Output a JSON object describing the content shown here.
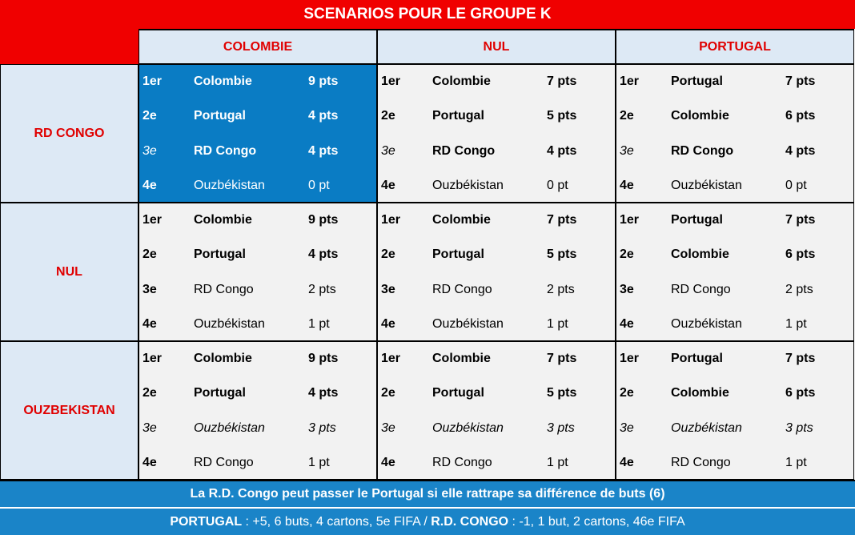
{
  "title": "SCENARIOS POUR LE GROUPE K",
  "columns": [
    "COLOMBIE",
    "NUL",
    "PORTUGAL"
  ],
  "rows": [
    {
      "label": "RD CONGO",
      "cells": [
        [
          [
            "1er",
            "Colombie",
            "9 pts"
          ],
          [
            "2e",
            "Portugal",
            "4 pts"
          ],
          [
            "3e",
            "RD Congo",
            "4 pts"
          ],
          [
            "4e",
            "Ouzbékistan",
            "0 pt"
          ]
        ],
        [
          [
            "1er",
            "Colombie",
            "7 pts"
          ],
          [
            "2e",
            "Portugal",
            "5 pts"
          ],
          [
            "3e",
            "RD Congo",
            "4 pts"
          ],
          [
            "4e",
            "Ouzbékistan",
            "0 pt"
          ]
        ],
        [
          [
            "1er",
            "Portugal",
            "7 pts"
          ],
          [
            "2e",
            "Colombie",
            "6 pts"
          ],
          [
            "3e",
            "RD Congo",
            "4 pts"
          ],
          [
            "4e",
            "Ouzbékistan",
            "0 pt"
          ]
        ]
      ]
    },
    {
      "label": "NUL",
      "cells": [
        [
          [
            "1er",
            "Colombie",
            "9 pts"
          ],
          [
            "2e",
            "Portugal",
            "4 pts"
          ],
          [
            "3e",
            "RD Congo",
            "2 pts"
          ],
          [
            "4e",
            "Ouzbékistan",
            "1 pt"
          ]
        ],
        [
          [
            "1er",
            "Colombie",
            "7 pts"
          ],
          [
            "2e",
            "Portugal",
            "5 pts"
          ],
          [
            "3e",
            "RD Congo",
            "2 pts"
          ],
          [
            "4e",
            "Ouzbékistan",
            "1 pt"
          ]
        ],
        [
          [
            "1er",
            "Portugal",
            "7 pts"
          ],
          [
            "2e",
            "Colombie",
            "6 pts"
          ],
          [
            "3e",
            "RD Congo",
            "2 pts"
          ],
          [
            "4e",
            "Ouzbékistan",
            "1 pt"
          ]
        ]
      ]
    },
    {
      "label": "OUZBEKISTAN",
      "cells": [
        [
          [
            "1er",
            "Colombie",
            "9 pts"
          ],
          [
            "2e",
            "Portugal",
            "4 pts"
          ],
          [
            "3e",
            "Ouzbékistan",
            "3 pts"
          ],
          [
            "4e",
            "RD Congo",
            "1 pt"
          ]
        ],
        [
          [
            "1er",
            "Colombie",
            "7 pts"
          ],
          [
            "2e",
            "Portugal",
            "5 pts"
          ],
          [
            "3e",
            "Ouzbékistan",
            "3 pts"
          ],
          [
            "4e",
            "RD Congo",
            "1 pt"
          ]
        ],
        [
          [
            "1er",
            "Portugal",
            "7 pts"
          ],
          [
            "2e",
            "Colombie",
            "6 pts"
          ],
          [
            "3e",
            "Ouzbékistan",
            "3 pts"
          ],
          [
            "4e",
            "RD Congo",
            "1 pt"
          ]
        ]
      ]
    }
  ],
  "footer": {
    "note": "La R.D. Congo peut passer le Portugal si elle rattrape sa différence de buts (6)",
    "stats": [
      "PORTUGAL",
      " : +5, 6 buts, 4 cartons, 5e FIFA / ",
      "R.D. CONGO",
      " : -1, 1 but, 2 cartons, 46e FIFA"
    ]
  }
}
